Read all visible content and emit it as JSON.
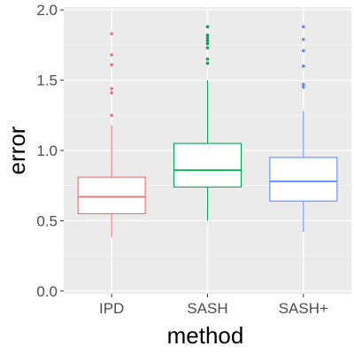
{
  "chart_data": {
    "type": "box",
    "xlabel": "method",
    "ylabel": "error",
    "ylim": [
      -0.02,
      2.02
    ],
    "yticks": [
      0.0,
      0.5,
      1.0,
      1.5,
      2.0
    ],
    "ytick_labels": [
      "0.0",
      "0.5",
      "1.0",
      "1.5",
      "2.0"
    ],
    "grid": true,
    "background": "#ebebeb",
    "categories": [
      "IPD",
      "SASH",
      "SASH+"
    ],
    "boxes": [
      {
        "label": "IPD",
        "color": "#e57373",
        "whisker_low": 0.38,
        "q1": 0.55,
        "median": 0.67,
        "q3": 0.81,
        "whisker_high": 1.18,
        "outliers": [
          1.25,
          1.41,
          1.44,
          1.61,
          1.68,
          1.83
        ]
      },
      {
        "label": "SASH",
        "color": "#00a651",
        "whisker_low": 0.5,
        "q1": 0.74,
        "median": 0.86,
        "q3": 1.05,
        "whisker_high": 1.5,
        "outliers": [
          1.62,
          1.65,
          1.73,
          1.76,
          1.78,
          1.8,
          1.82,
          1.88
        ]
      },
      {
        "label": "SASH+",
        "color": "#5b8ff9",
        "whisker_low": 0.42,
        "q1": 0.64,
        "median": 0.78,
        "q3": 0.95,
        "whisker_high": 1.28,
        "outliers": [
          1.45,
          1.47,
          1.6,
          1.71,
          1.79,
          1.88
        ]
      }
    ]
  }
}
